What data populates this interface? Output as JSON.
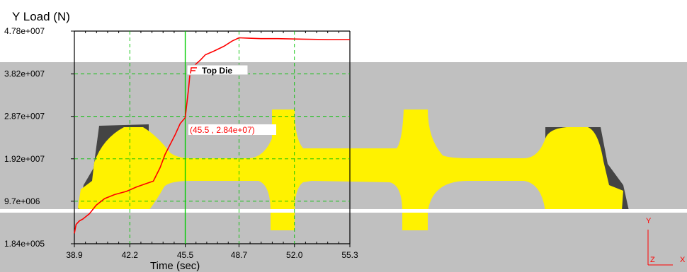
{
  "chart_data": {
    "type": "line",
    "title": "Y Load (N)",
    "xlabel": "Time (sec)",
    "ylabel": "",
    "xlim": [
      38.9,
      55.3
    ],
    "ylim": [
      184000,
      47800000
    ],
    "x_ticks": [
      "38.9",
      "42.2",
      "45.5",
      "48.7",
      "52.0",
      "55.3"
    ],
    "y_ticks": [
      "4.78e+007",
      "3.82e+007",
      "2.87e+007",
      "1.92e+007",
      "9.7e+006",
      "1.84e+005"
    ],
    "grid": true,
    "legend": "top-center",
    "series": [
      {
        "name": "Top Die",
        "color": "#ff0000",
        "x": [
          38.9,
          39.0,
          39.2,
          39.4,
          39.8,
          40.2,
          40.7,
          41.3,
          42.0,
          42.6,
          43.2,
          43.6,
          44.0,
          44.3,
          44.6,
          44.9,
          45.2,
          45.5,
          45.7,
          45.8,
          46.1,
          46.4,
          46.7,
          47.2,
          47.8,
          48.3,
          48.7,
          49.3,
          50.0,
          51.0,
          52.5,
          54.0,
          55.3
        ],
        "y": [
          2500000,
          4500000,
          5300000,
          5700000,
          6900000,
          8800000,
          10300000,
          11200000,
          11900000,
          12900000,
          13700000,
          14200000,
          17200000,
          20200000,
          22400000,
          24600000,
          27100000,
          28400000,
          35000000,
          39000000,
          40300000,
          41300000,
          42500000,
          43300000,
          44400000,
          45600000,
          46300000,
          46200000,
          46100000,
          46100000,
          46000000,
          45900000,
          45900000
        ]
      }
    ],
    "marker": {
      "x": 45.5,
      "label": "(45.5 , 2.84e+07)",
      "color": "#00cc00"
    }
  },
  "triad": {
    "y_label": "Y",
    "z_label": "Z",
    "x_label": "X",
    "color": "#ff0000"
  }
}
